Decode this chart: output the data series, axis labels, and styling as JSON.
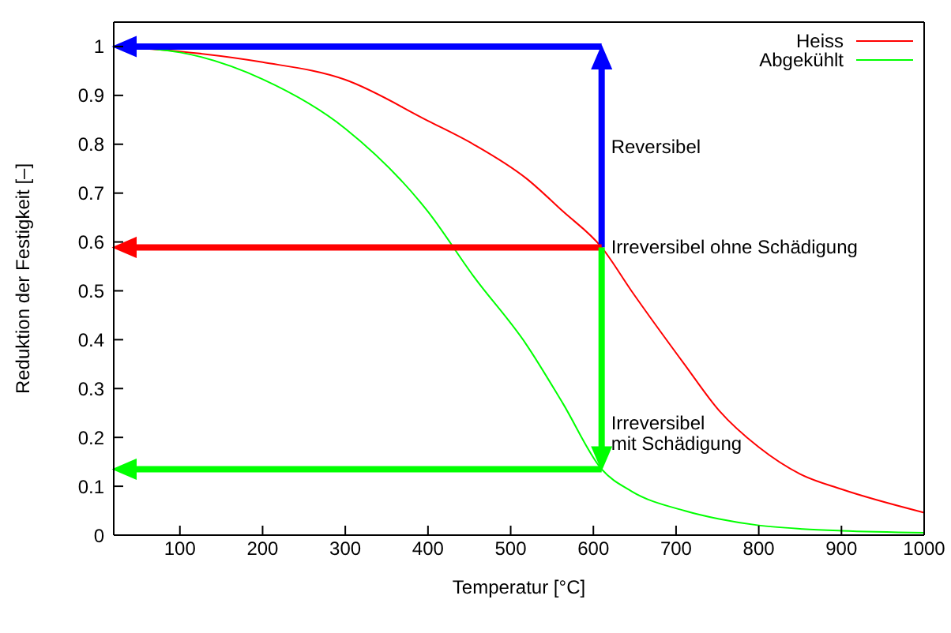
{
  "chart_data": {
    "type": "line",
    "xlabel": "Temperatur [°C]",
    "ylabel": "Reduktion der Festigkeit [–]",
    "x": [
      20,
      100,
      200,
      300,
      400,
      455,
      519,
      563,
      610,
      646,
      710,
      752,
      800,
      850,
      900,
      1000
    ],
    "series": [
      {
        "name": "Heiss",
        "color": "#ff0000",
        "values": [
          1,
          0.99,
          0.968,
          0.932,
          0.848,
          0.8,
          0.73,
          0.663,
          0.589,
          0.5,
          0.35,
          0.255,
          0.18,
          0.125,
          0.094,
          0.046
        ]
      },
      {
        "name": "Abgekühlt",
        "color": "#00ff00",
        "values": [
          1,
          0.988,
          0.933,
          0.832,
          0.662,
          0.53,
          0.39,
          0.27,
          0.135,
          0.09,
          0.05,
          0.033,
          0.02,
          0.013,
          0.009,
          0.005
        ]
      }
    ],
    "xlim": [
      20,
      1000
    ],
    "xticks": [
      100,
      200,
      300,
      400,
      500,
      600,
      700,
      800,
      900,
      1000
    ],
    "ylim": [
      0,
      1.05
    ],
    "yticks": [
      0,
      0.1,
      0.2,
      0.3,
      0.4,
      0.5,
      0.6,
      0.7,
      0.8,
      0.9,
      1
    ],
    "annotations": [
      "Reversibel",
      {
        "text": "Irreversibel ohne Schädigung",
        "x": 610,
        "y": 0.589
      },
      {
        "text": "Irreversibel\nmit Schädigung",
        "x": 610,
        "y": 0.135
      }
    ],
    "legend": "top right",
    "grid": false,
    "marker": "none",
    "line_style": "solid"
  }
}
